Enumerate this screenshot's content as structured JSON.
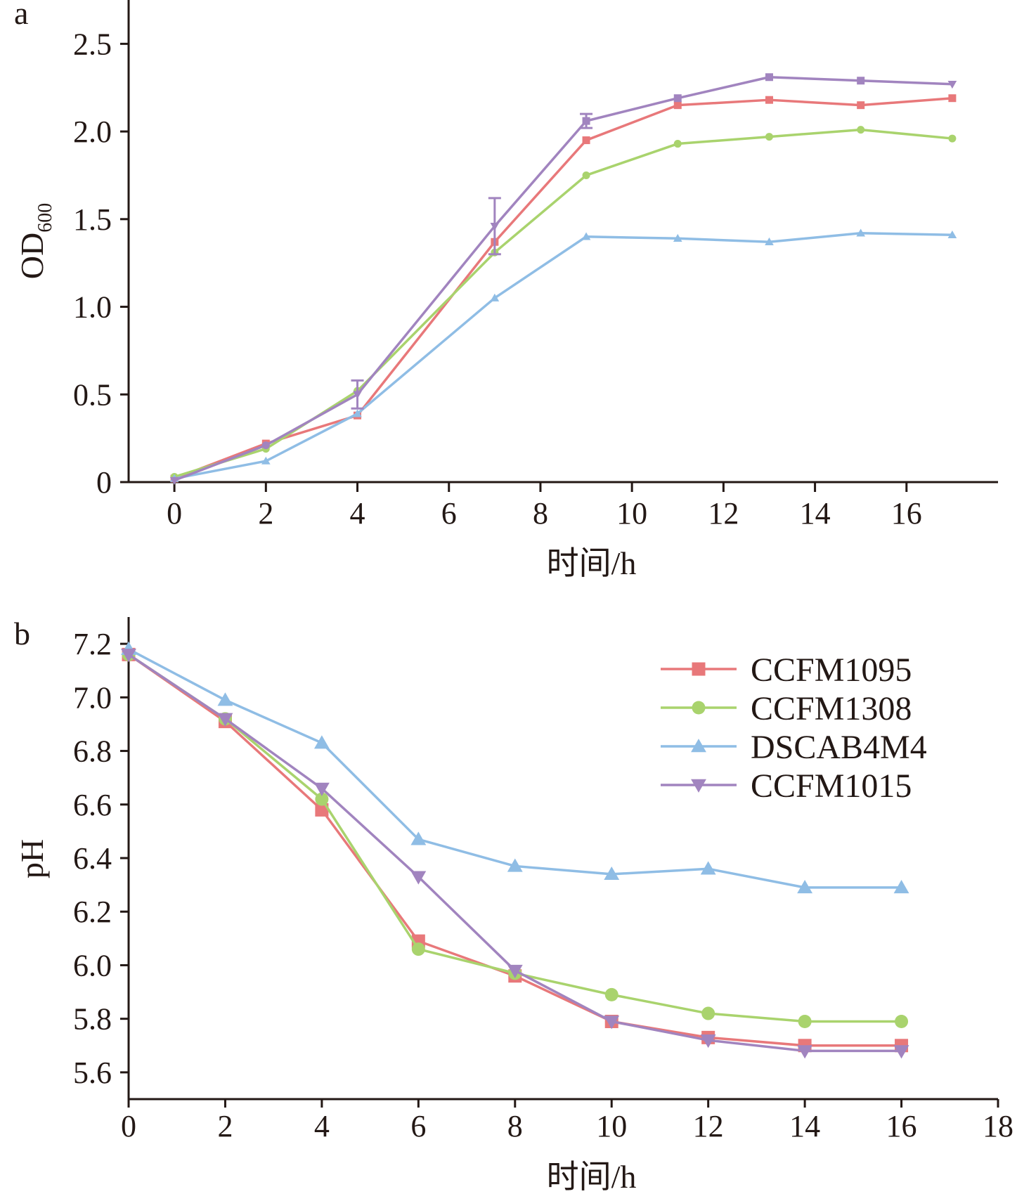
{
  "chart_data": [
    {
      "type": "line",
      "panel_label": "a",
      "xlabel": "时间/h",
      "ylabel": "OD",
      "ylabel_sub": "600",
      "xlim": [
        -1,
        18
      ],
      "ylim": [
        0,
        2.75
      ],
      "x_ticks": [
        0,
        2,
        4,
        6,
        8,
        10,
        12,
        14,
        16
      ],
      "x_tick_labels": [
        "0",
        "2",
        "4",
        "6",
        "8",
        "10",
        "12",
        "14",
        "16"
      ],
      "y_ticks": [
        0,
        0.5,
        1.0,
        1.5,
        2.0,
        2.5
      ],
      "y_tick_labels": [
        "0",
        "0.5",
        "1.0",
        "1.5",
        "2.0",
        "2.5"
      ],
      "grid": false,
      "series": [
        {
          "name": "CCFM1095",
          "color": "#e8787a",
          "marker": "square",
          "marker_size": "small",
          "x": [
            0,
            2,
            4,
            7,
            9,
            11,
            13,
            15,
            17
          ],
          "y": [
            0.02,
            0.22,
            0.38,
            1.37,
            1.95,
            2.15,
            2.18,
            2.15,
            2.19
          ]
        },
        {
          "name": "CCFM1308",
          "color": "#a9d36d",
          "marker": "circle",
          "marker_size": "small",
          "x": [
            0,
            2,
            4,
            7,
            9,
            11,
            13,
            15,
            17
          ],
          "y": [
            0.03,
            0.19,
            0.52,
            1.31,
            1.75,
            1.93,
            1.97,
            2.01,
            1.96
          ]
        },
        {
          "name": "DSCAB4M4",
          "color": "#8fbde5",
          "marker": "triangle-up",
          "marker_size": "small",
          "x": [
            0,
            2,
            4,
            7,
            9,
            11,
            13,
            15,
            17
          ],
          "y": [
            0.02,
            0.12,
            0.39,
            1.05,
            1.4,
            1.39,
            1.37,
            1.42,
            1.41
          ]
        },
        {
          "name": "CCFM1015",
          "color": "#a184bf",
          "marker": "mixed",
          "marker_size": "small",
          "marker_list": [
            "triangle-down",
            "circle",
            "triangle-down",
            "triangle-down",
            "square",
            "square",
            "square",
            "square",
            "triangle-down"
          ],
          "x": [
            0,
            2,
            4,
            7,
            9,
            11,
            13,
            15,
            17
          ],
          "y": [
            0.01,
            0.21,
            0.5,
            1.46,
            2.06,
            2.19,
            2.31,
            2.29,
            2.27
          ],
          "error": [
            0,
            0,
            0.08,
            0.16,
            0.04,
            0,
            0,
            0,
            0
          ]
        }
      ]
    },
    {
      "type": "line",
      "panel_label": "b",
      "xlabel": "时间/h",
      "ylabel": "pH",
      "xlim": [
        0,
        18
      ],
      "ylim": [
        5.5,
        7.3
      ],
      "x_ticks": [
        0,
        2,
        4,
        6,
        8,
        10,
        12,
        14,
        16,
        18
      ],
      "x_tick_labels": [
        "0",
        "2",
        "4",
        "6",
        "8",
        "10",
        "12",
        "14",
        "16",
        "18"
      ],
      "y_ticks": [
        5.6,
        5.8,
        6.0,
        6.2,
        6.4,
        6.6,
        6.8,
        7.0,
        7.2
      ],
      "y_tick_labels": [
        "5.6",
        "5.8",
        "6.0",
        "6.2",
        "6.4",
        "6.6",
        "6.8",
        "7.0",
        "7.2"
      ],
      "grid": false,
      "legend_position": "top-right",
      "series": [
        {
          "name": "CCFM1095",
          "color": "#e8787a",
          "marker": "square",
          "marker_size": "large",
          "x": [
            0,
            2,
            4,
            6,
            8,
            10,
            12,
            14,
            16
          ],
          "y": [
            7.16,
            6.91,
            6.58,
            6.09,
            5.96,
            5.79,
            5.73,
            5.7,
            5.7
          ]
        },
        {
          "name": "CCFM1308",
          "color": "#a9d36d",
          "marker": "circle",
          "marker_size": "large",
          "x": [
            0,
            2,
            4,
            6,
            8,
            10,
            12,
            14,
            16
          ],
          "y": [
            7.16,
            6.92,
            6.62,
            6.06,
            5.97,
            5.89,
            5.82,
            5.79,
            5.79
          ]
        },
        {
          "name": "DSCAB4M4",
          "color": "#8fbde5",
          "marker": "triangle-up",
          "marker_size": "large",
          "x": [
            0,
            2,
            4,
            6,
            8,
            10,
            12,
            14,
            16
          ],
          "y": [
            7.18,
            6.99,
            6.83,
            6.47,
            6.37,
            6.34,
            6.36,
            6.29,
            6.29
          ]
        },
        {
          "name": "CCFM1015",
          "color": "#a184bf",
          "marker": "triangle-down",
          "marker_size": "large",
          "x": [
            0,
            2,
            4,
            6,
            8,
            10,
            12,
            14,
            16
          ],
          "y": [
            7.16,
            6.92,
            6.66,
            6.33,
            5.98,
            5.79,
            5.72,
            5.68,
            5.68
          ]
        }
      ]
    }
  ]
}
